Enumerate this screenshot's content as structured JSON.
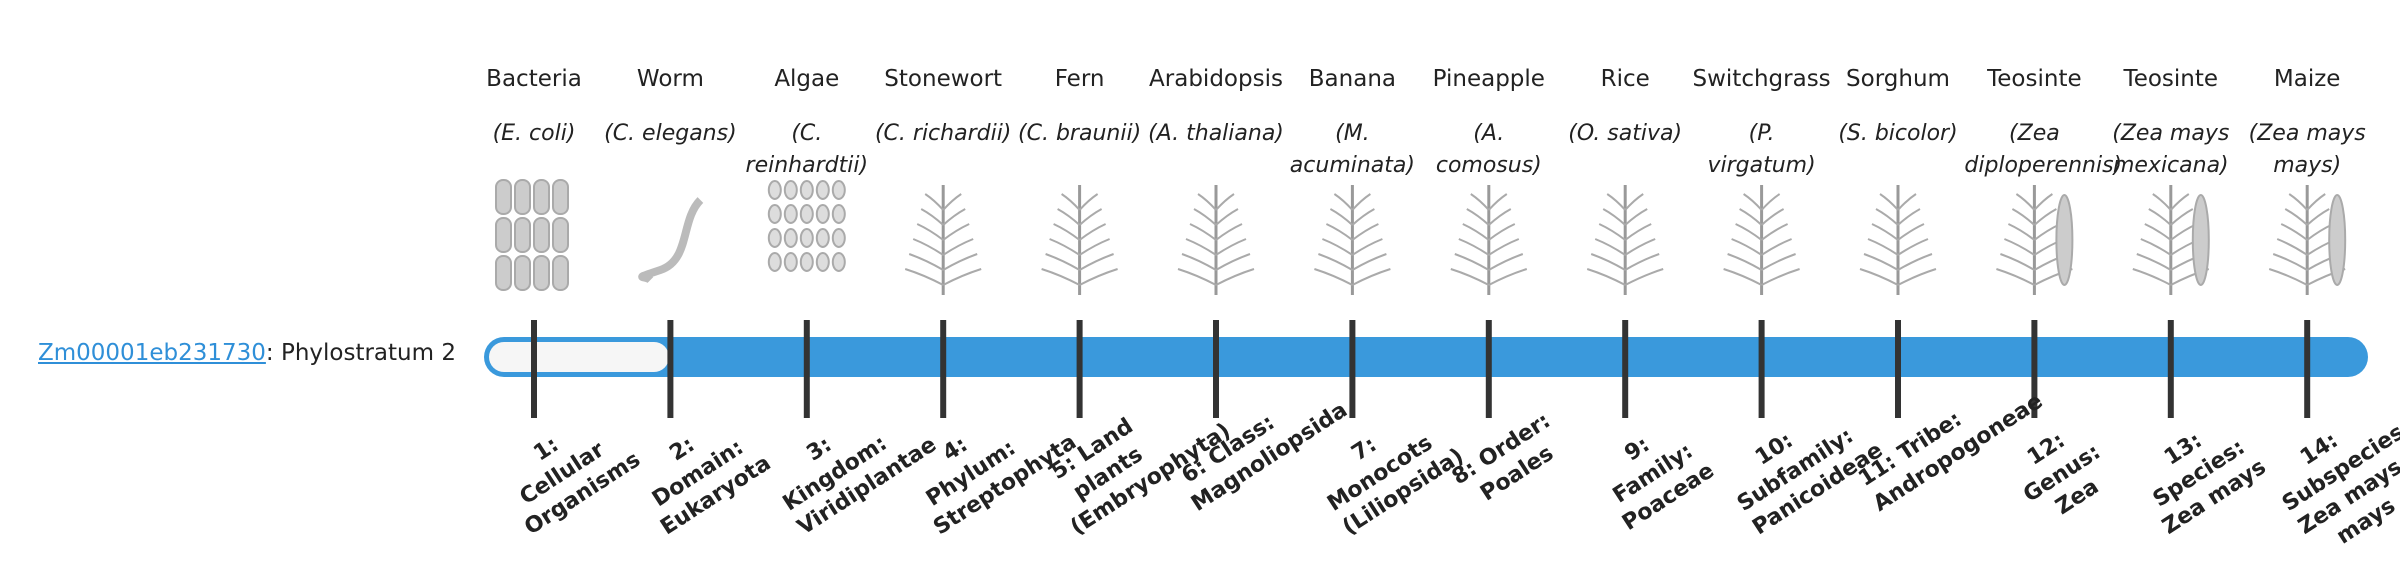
{
  "gene": {
    "id": "Zm00001eb231730",
    "label": ": Phylostratum 2"
  },
  "columns": [
    {
      "name": "Bacteria",
      "species": "(E. coli)",
      "stratum": "1: Cellular Organisms"
    },
    {
      "name": "Worm",
      "species": "(C. elegans)",
      "stratum": "2: Domain: Eukaryota"
    },
    {
      "name": "Algae",
      "species": "(C. reinhardtii)",
      "stratum": "3: Kingdom: Viridiplantae"
    },
    {
      "name": "Stonewort",
      "species": "(C. richardii)",
      "stratum": "4: Phylum: Streptophyta"
    },
    {
      "name": "Fern",
      "species": "(C. braunii)",
      "stratum": "5: Land plants (Embryophyta)"
    },
    {
      "name": "Arabidopsis",
      "species": "(A. thaliana)",
      "stratum": "6: Class: Magnoliopsida"
    },
    {
      "name": "Banana",
      "species": "(M. acuminata)",
      "stratum": "7: Monocots (Liliopsida)"
    },
    {
      "name": "Pineapple",
      "species": "(A. comosus)",
      "stratum": "8: Order: Poales"
    },
    {
      "name": "Rice",
      "species": "(O. sativa)",
      "stratum": "9: Family: Poaceae"
    },
    {
      "name": "Switchgrass",
      "species": "(P. virgatum)",
      "stratum": "10: Subfamily: Panicoideae"
    },
    {
      "name": "Sorghum",
      "species": "(S. bicolor)",
      "stratum": "11: Tribe: Andropogoneae"
    },
    {
      "name": "Teosinte",
      "species": "(Zea diploperennis)",
      "stratum": "12: Genus: Zea"
    },
    {
      "name": "Teosinte",
      "species": "(Zea mays mexicana)",
      "stratum": "13: Species: Zea mays"
    },
    {
      "name": "Maize",
      "species": "(Zea mays mays)",
      "stratum": "14: Subspecies: Zea mays mays"
    }
  ]
}
